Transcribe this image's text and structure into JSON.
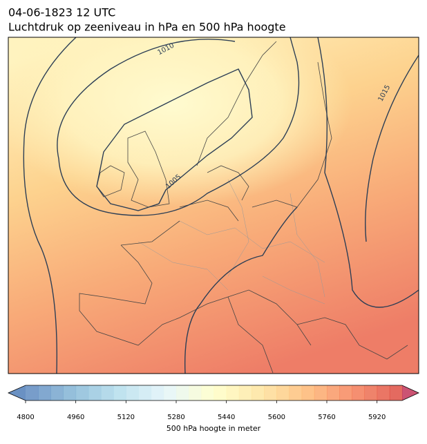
{
  "header": {
    "title": "04-06-1823 12 UTC",
    "subtitle": "Luchtdruk op zeeniveau in hPa en 500 hPa hoogte"
  },
  "map": {
    "contour_labels": [
      1010,
      1015,
      1005
    ]
  },
  "colorbar": {
    "range": [
      4800,
      6000
    ],
    "step": 40,
    "ticks": [
      4800,
      4960,
      5120,
      5280,
      5440,
      5600,
      5760,
      5920
    ],
    "label": "500 hPa hoogte in meter"
  }
}
